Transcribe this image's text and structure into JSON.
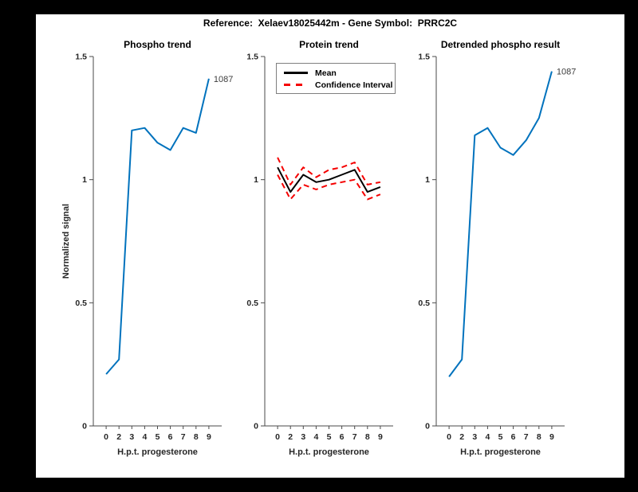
{
  "figure": {
    "title": "Reference:  Xelaev18025442m - Gene Symbol:  PRRC2C",
    "background_color": "#000000",
    "canvas_color": "#ffffff"
  },
  "colors": {
    "line_blue": "#0072BD",
    "mean_black": "#000000",
    "ci_red": "#f50000",
    "axis_gray": "#4a4a4a",
    "tick_text": "#262626",
    "legend_border": "#7f7f7f"
  },
  "chart_data": [
    {
      "type": "line",
      "title": "Phospho trend",
      "xlabel": "H.p.t. progesterone",
      "ylabel": "Normalized signal",
      "x_ticklabels": [
        "0",
        "2",
        "3",
        "4",
        "5",
        "6",
        "7",
        "8",
        "9"
      ],
      "y_ticks": [
        0,
        0.5,
        1,
        1.5
      ],
      "ylim": [
        0,
        1.5
      ],
      "grid": false,
      "series": [
        {
          "name": "phospho-signal",
          "color": "#0072BD",
          "style": "solid",
          "values": [
            0.21,
            0.27,
            1.2,
            1.21,
            1.15,
            1.12,
            1.21,
            1.19,
            1.41
          ]
        }
      ],
      "end_label": "1087"
    },
    {
      "type": "line",
      "title": "Protein trend",
      "xlabel": "H.p.t. progesterone",
      "ylabel": "",
      "x_ticklabels": [
        "0",
        "2",
        "3",
        "4",
        "5",
        "6",
        "7",
        "8",
        "9"
      ],
      "y_ticks": [
        0,
        0.5,
        1,
        1.5
      ],
      "ylim": [
        0,
        1.5
      ],
      "grid": false,
      "legend_position": "northwest",
      "legend": [
        {
          "label": "Mean",
          "color": "#000000",
          "style": "solid"
        },
        {
          "label": "Confidence Interval",
          "color": "#f50000",
          "style": "dashed"
        }
      ],
      "series": [
        {
          "name": "mean",
          "color": "#000000",
          "style": "solid",
          "values": [
            1.05,
            0.95,
            1.02,
            0.99,
            1.0,
            1.02,
            1.04,
            0.95,
            0.97
          ]
        },
        {
          "name": "ci-upper",
          "color": "#f50000",
          "style": "dashed",
          "values": [
            1.09,
            0.98,
            1.05,
            1.01,
            1.04,
            1.05,
            1.07,
            0.98,
            0.99
          ]
        },
        {
          "name": "ci-lower",
          "color": "#f50000",
          "style": "dashed",
          "values": [
            1.02,
            0.92,
            0.98,
            0.96,
            0.98,
            0.99,
            1.0,
            0.92,
            0.94
          ]
        }
      ]
    },
    {
      "type": "line",
      "title": "Detrended phospho result",
      "xlabel": "H.p.t. progesterone",
      "ylabel": "",
      "x_ticklabels": [
        "0",
        "2",
        "3",
        "4",
        "5",
        "6",
        "7",
        "8",
        "9"
      ],
      "y_ticks": [
        0,
        0.5,
        1,
        1.5
      ],
      "ylim": [
        0,
        1.5
      ],
      "grid": false,
      "series": [
        {
          "name": "detrended-phospho-signal",
          "color": "#0072BD",
          "style": "solid",
          "values": [
            0.2,
            0.27,
            1.18,
            1.21,
            1.13,
            1.1,
            1.16,
            1.25,
            1.44
          ]
        }
      ],
      "end_label": "1087"
    }
  ]
}
